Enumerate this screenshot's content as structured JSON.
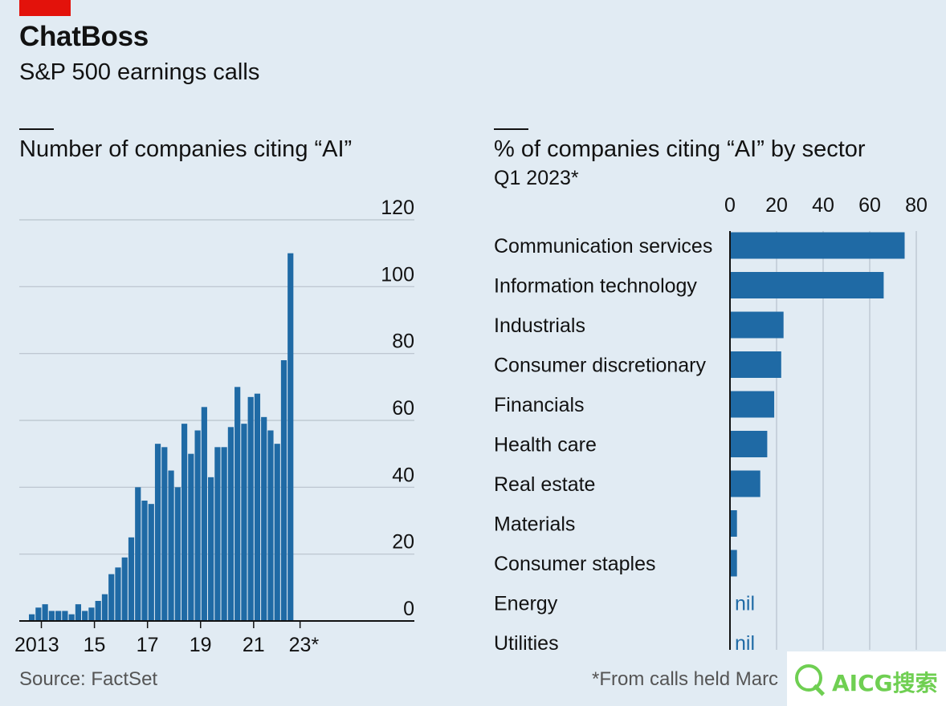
{
  "header": {
    "title": "ChatBoss",
    "subtitle": "S&P 500 earnings calls"
  },
  "left_panel": {
    "title": "Number of companies citing “AI”"
  },
  "right_panel": {
    "title": "% of companies citing “AI” by sector",
    "subtitle": "Q1 2023*"
  },
  "footer": {
    "source": "Source: FactSet",
    "note": "*From calls held Marc"
  },
  "watermark": {
    "text": "AICG搜索"
  },
  "colors": {
    "background": "#e1ebf3",
    "bar": "#1f6aa5",
    "grid": "#b8c2cc",
    "red_tag": "#e3120b",
    "nil_text": "#1f6aa5"
  },
  "chart_data": [
    {
      "type": "bar",
      "title": "Number of companies citing “AI”",
      "x_start": "2012 Q4",
      "x_tick_labels": [
        {
          "label": "2013",
          "index": 2
        },
        {
          "label": "15",
          "index": 10
        },
        {
          "label": "17",
          "index": 18
        },
        {
          "label": "19",
          "index": 26
        },
        {
          "label": "21",
          "index": 34
        },
        {
          "label": "23*",
          "index": 41
        }
      ],
      "values": [
        2,
        4,
        5,
        3,
        3,
        3,
        2,
        5,
        3,
        4,
        6,
        8,
        14,
        16,
        19,
        25,
        40,
        36,
        35,
        53,
        52,
        45,
        40,
        59,
        50,
        57,
        64,
        43,
        52,
        52,
        58,
        70,
        59,
        67,
        68,
        61,
        57,
        53,
        78,
        110
      ],
      "ylim": [
        0,
        120
      ],
      "yticks": [
        0,
        20,
        40,
        60,
        80,
        100,
        120
      ],
      "xlabel": "",
      "ylabel": "",
      "grid": true
    },
    {
      "type": "bar",
      "orientation": "horizontal",
      "title": "% of companies citing “AI” by sector",
      "subtitle": "Q1 2023*",
      "categories": [
        "Communication services",
        "Information technology",
        "Industrials",
        "Consumer discretionary",
        "Financials",
        "Health care",
        "Real estate",
        "Materials",
        "Consumer staples",
        "Energy",
        "Utilities"
      ],
      "values": [
        75,
        66,
        23,
        22,
        19,
        16,
        13,
        3,
        3,
        0,
        0
      ],
      "value_labels": [
        "",
        "",
        "",
        "",
        "",
        "",
        "",
        "",
        "",
        "nil",
        "nil"
      ],
      "xlim": [
        0,
        80
      ],
      "xticks": [
        0,
        20,
        40,
        60,
        80
      ],
      "grid": true
    }
  ]
}
